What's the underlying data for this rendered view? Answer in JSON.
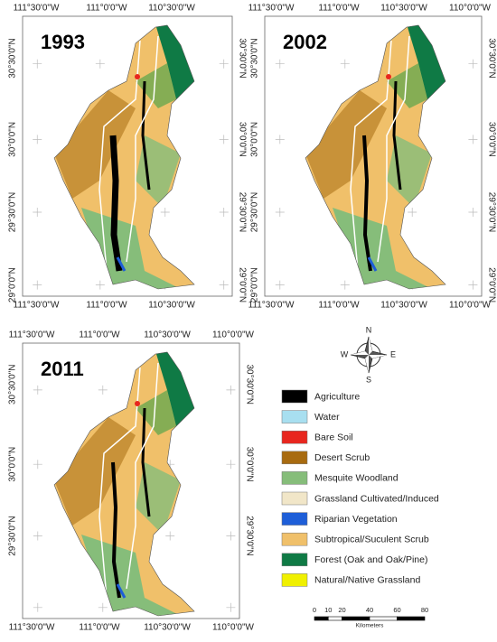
{
  "panels": [
    {
      "title": "1993",
      "lon_labels": [
        "111°30'0\"W",
        "111°0'0\"W",
        "110°30'0\"W"
      ],
      "lat_labels": [
        "30°30'0\"N",
        "30°0'0\"N",
        "29°30'0\"N",
        "29°0'0\"N"
      ]
    },
    {
      "title": "2002",
      "lon_labels": [
        "111°30'0\"W",
        "111°0'0\"W",
        "110°30'0\"W",
        "110°0'0\"W"
      ],
      "lat_labels": [
        "30°30'0\"N",
        "30°0'0\"N",
        "29°30'0\"N",
        "29°0'0\"N"
      ]
    },
    {
      "title": "2011",
      "lon_labels": [
        "111°30'0\"W",
        "111°0'0\"W",
        "110°30'0\"W",
        "110°0'0\"W"
      ],
      "lat_labels": [
        "30°30'0\"N",
        "30°0'0\"N",
        "29°30'0\"N"
      ]
    }
  ],
  "compass": {
    "north": "N",
    "south": "S",
    "east": "E",
    "west": "W"
  },
  "legend": [
    {
      "label": "Agriculture",
      "color": "#000000"
    },
    {
      "label": "Water",
      "color": "#a8dff0"
    },
    {
      "label": "Bare Soil",
      "color": "#e8261e"
    },
    {
      "label": "Desert Scrub",
      "color": "#a86b10"
    },
    {
      "label": "Mesquite Woodland",
      "color": "#86bd7a"
    },
    {
      "label": "Grassland Cultivated/Induced",
      "color": "#f1e6c8"
    },
    {
      "label": "Riparian Vegetation",
      "color": "#1e5ed8"
    },
    {
      "label": "Subtropical/Suculent Scrub",
      "color": "#f0c06a"
    },
    {
      "label": "Forest (Oak and Oak/Pine)",
      "color": "#0f7a45"
    },
    {
      "label": "Natural/Native Grassland",
      "color": "#f0f000"
    }
  ],
  "scale_bar": {
    "ticks": [
      0,
      10,
      20,
      40,
      60,
      80
    ],
    "unit": "Kilometers"
  }
}
